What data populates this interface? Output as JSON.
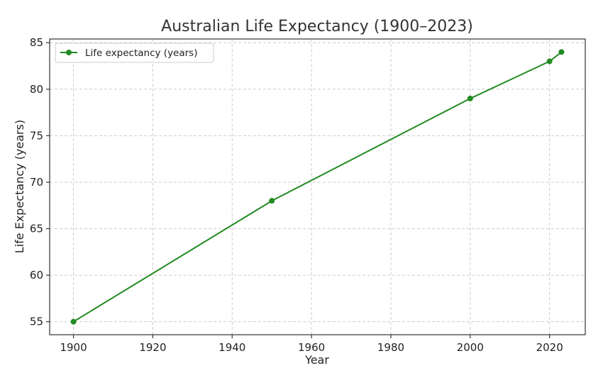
{
  "chart_data": {
    "type": "line",
    "title": "Australian Life Expectancy (1900–2023)",
    "xlabel": "Year",
    "ylabel": "Life Expectancy (years)",
    "xlim": [
      1894,
      2029
    ],
    "ylim": [
      53.6,
      85.4
    ],
    "xticks": [
      1900,
      1920,
      1940,
      1960,
      1980,
      2000,
      2020
    ],
    "yticks": [
      55,
      60,
      65,
      70,
      75,
      80,
      85
    ],
    "grid": true,
    "legend_position": "top-left",
    "series": [
      {
        "name": "Life expectancy (years)",
        "color": "#228b22",
        "x": [
          1900,
          1950,
          2000,
          2020,
          2023
        ],
        "y": [
          55,
          68,
          79,
          83,
          84
        ]
      }
    ]
  }
}
